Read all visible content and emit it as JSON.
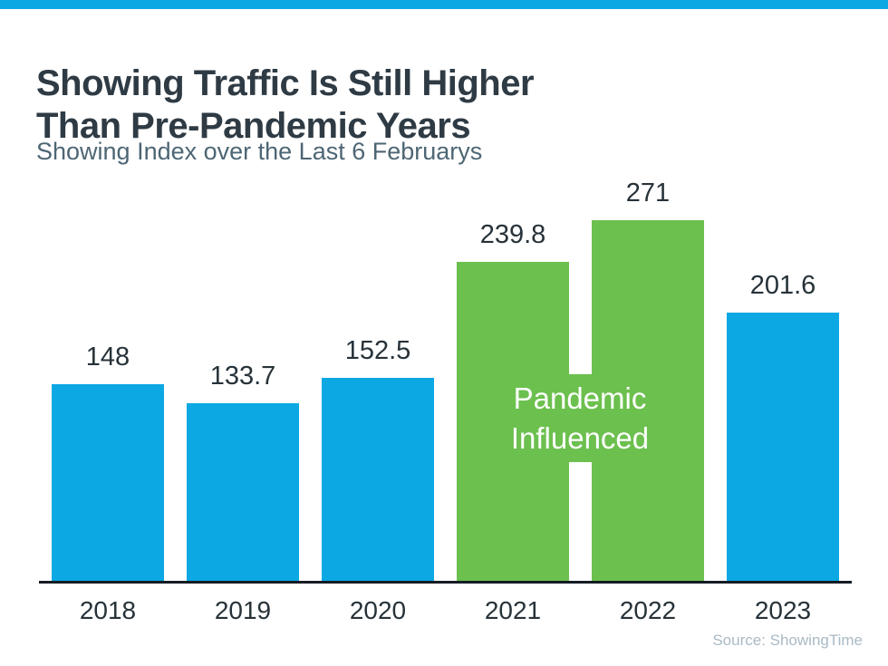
{
  "page": {
    "title": "Showing Traffic Is Still Higher\nThan Pre-Pandemic Years",
    "subtitle": "Showing Index over the Last 6 Februarys",
    "source": "Source: ShowingTime"
  },
  "colors": {
    "accent_blue": "#0CA8E4",
    "bar_blue": "#0CA8E4",
    "bar_green": "#6CC04E",
    "title_text": "#2F3B44",
    "subtitle_text": "#4D6674",
    "label_text": "#273239",
    "axis_line": "#141C24",
    "annotation_text": "#FFFFFF",
    "source_text": "#A9BAC5"
  },
  "chart_data": {
    "type": "bar",
    "title": "Showing Traffic Is Still Higher Than Pre-Pandemic Years",
    "subtitle": "Showing Index over the Last 6 Februarys",
    "categories": [
      "2018",
      "2019",
      "2020",
      "2021",
      "2022",
      "2023"
    ],
    "values": [
      148,
      133.7,
      152.5,
      239.8,
      271,
      201.6
    ],
    "value_labels": [
      "148",
      "133.7",
      "152.5",
      "239.8",
      "271",
      "201.6"
    ],
    "bar_colors": [
      "blue",
      "blue",
      "blue",
      "green",
      "green",
      "blue"
    ],
    "annotation": {
      "text": "Pandemic\nInfluenced",
      "applies_to": [
        "2021",
        "2022"
      ]
    },
    "xlabel": "",
    "ylabel": "Showing Index",
    "ylim": [
      0,
      290
    ],
    "grid": false,
    "legend": false,
    "source": "ShowingTime"
  }
}
